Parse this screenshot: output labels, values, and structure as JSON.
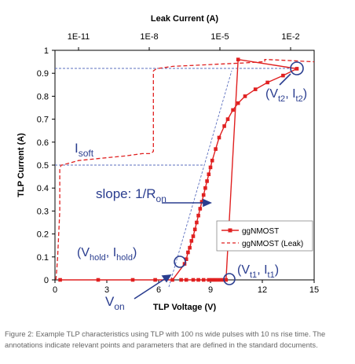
{
  "chart_data": {
    "type": "line",
    "xlabel": "TLP Voltage (V)",
    "ylabel": "TLP Current (A)",
    "x2label": "Leak Current (A)",
    "xlim": [
      0,
      15
    ],
    "ylim": [
      0,
      1
    ],
    "xticks": [
      "0",
      "3",
      "6",
      "9",
      "12",
      "15"
    ],
    "yticks": [
      "0",
      "0.1",
      "0.2",
      "0.3",
      "0.4",
      "0.5",
      "0.6",
      "0.7",
      "0.8",
      "0.9",
      "1"
    ],
    "x2ticks": [
      "1E-11",
      "1E-8",
      "1E-5",
      "1E-2"
    ],
    "x2_log_range": [
      -12,
      -1
    ],
    "legend_position": "right",
    "series": [
      {
        "name": "ggNMOST",
        "axis": "bottom",
        "style": "solid-square-markers",
        "color": "#e02020",
        "x": [
          0.3,
          2.5,
          4.5,
          5.8,
          6.8,
          7.5,
          7.6,
          7.7,
          7.8,
          7.9,
          8.0,
          8.1,
          8.2,
          8.3,
          8.4,
          8.5,
          8.6,
          8.7,
          8.8,
          8.9,
          9.0,
          9.1,
          9.3,
          9.5,
          9.8,
          10.0,
          10.3,
          10.6,
          11.0,
          11.6,
          12.3,
          13.2,
          14.0,
          10.6,
          9.9,
          9.7,
          9.5,
          9.3,
          9.1,
          8.9,
          8.6,
          8.3,
          8.0,
          7.6,
          7.3
        ],
        "y": [
          0.0,
          0.0,
          0.0,
          0.0,
          0.0,
          0.07,
          0.09,
          0.12,
          0.14,
          0.17,
          0.19,
          0.22,
          0.25,
          0.28,
          0.31,
          0.34,
          0.37,
          0.4,
          0.43,
          0.46,
          0.49,
          0.52,
          0.57,
          0.62,
          0.67,
          0.7,
          0.74,
          0.77,
          0.8,
          0.83,
          0.86,
          0.89,
          0.92,
          0.96,
          0.0,
          0.0,
          0.0,
          0.0,
          0.0,
          0.0,
          0.0,
          0.0,
          0.0,
          0.0,
          0.0
        ]
      },
      {
        "name": "ggNMOST (Leak)",
        "axis": "top-log",
        "style": "dashed",
        "color": "#e02020",
        "x": [
          1.1e-12,
          1.2e-12,
          1.3e-12,
          1.6e-12,
          1.6e-12,
          1.7e-12,
          1.8e-12,
          2e-12,
          1e-11,
          1e-10,
          1e-09,
          5e-09,
          1.2e-08,
          1.5e-08,
          1.5e-08,
          2e-08,
          1e-07,
          1e-06,
          1e-05,
          0.0001,
          0.0006,
          0.0008,
          0.0008,
          0.001,
          0.01,
          0.1
        ],
        "y": [
          0.0,
          0.05,
          0.1,
          0.3,
          0.48,
          0.49,
          0.5,
          0.5,
          0.52,
          0.53,
          0.54,
          0.55,
          0.55,
          0.56,
          0.91,
          0.92,
          0.93,
          0.935,
          0.94,
          0.945,
          0.95,
          0.95,
          0.96,
          0.96,
          0.955,
          0.95
        ]
      }
    ],
    "annotations": [
      {
        "label": "I",
        "sub": "soft"
      },
      {
        "label": "slope: 1/R",
        "sub": "on"
      },
      {
        "label": "(V",
        "sub": "hold"
      },
      {
        "label": ", I",
        "sub": "hold"
      },
      {
        "label": "(V",
        "sub": "t2"
      },
      {
        "label": ", I",
        "sub": "t2"
      },
      {
        "label": "(V",
        "sub": "t1"
      },
      {
        "label": ", I",
        "sub": "t1"
      },
      {
        "label": "V",
        "sub": "on"
      },
      {
        "label": ")"
      }
    ]
  },
  "caption": "Figure 2: Example TLP characteristics using TLP with 100 ns wide pulses with 10 ns rise time. The annotations indicate relevant points and parameters that are defined in the standard documents."
}
